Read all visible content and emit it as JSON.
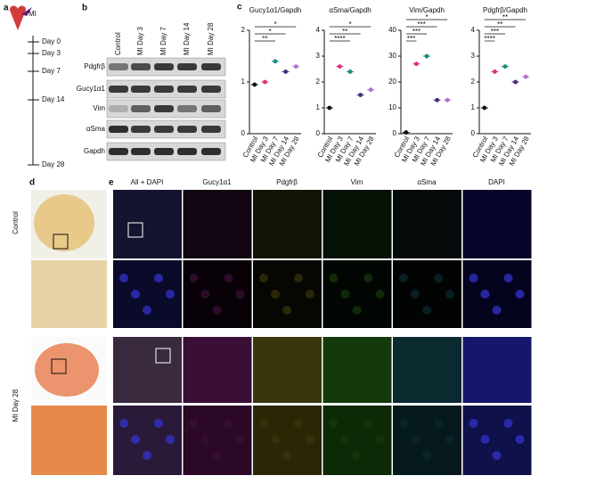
{
  "panel_labels": [
    "a",
    "b",
    "c",
    "d",
    "e"
  ],
  "timeline": {
    "label": "MI",
    "days": [
      "Day 0",
      "Day 3",
      "Day 7",
      "Day 14",
      "Day 28"
    ]
  },
  "blot": {
    "lanes": [
      "Control",
      "MI Day 3",
      "MI Day 7",
      "MI Day 14",
      "MI Day 28"
    ],
    "proteins": [
      "Pdgfrβ",
      "Gucy1α1",
      "Vim",
      "αSma",
      "Gapdh"
    ]
  },
  "chart_data": [
    {
      "type": "dot",
      "title": "Gucy1α1/Gapdh",
      "categories": [
        "Control",
        "MI Day 3",
        "MI Day 7",
        "MI Day 14",
        "MI Day 28"
      ],
      "values": [
        0.95,
        1.0,
        1.4,
        1.2,
        1.3
      ],
      "colors": [
        "#111111",
        "#e0307a",
        "#1a8a80",
        "#4a2a7a",
        "#b070d0"
      ],
      "ylim": [
        0,
        2
      ],
      "yticks": [
        0,
        1,
        2
      ],
      "significance": [
        "**",
        "*",
        "*"
      ]
    },
    {
      "type": "dot",
      "title": "αSma/Gapdh",
      "categories": [
        "Control",
        "MI Day 3",
        "MI Day 7",
        "MI Day 14",
        "MI Day 28"
      ],
      "values": [
        1.0,
        2.6,
        2.4,
        1.5,
        1.7
      ],
      "colors": [
        "#111111",
        "#e0307a",
        "#1a8a80",
        "#4a2a7a",
        "#b070d0"
      ],
      "ylim": [
        0,
        4
      ],
      "yticks": [
        0,
        1,
        2,
        3,
        4
      ],
      "significance": [
        "****",
        "**",
        "*"
      ]
    },
    {
      "type": "dot",
      "title": "Vim/Gapdh",
      "categories": [
        "Control",
        "MI Day 3",
        "MI Day 7",
        "MI Day 14",
        "MI Day 28"
      ],
      "values": [
        0.5,
        27,
        30,
        13,
        13
      ],
      "colors": [
        "#111111",
        "#e0307a",
        "#1a8a80",
        "#4a2a7a",
        "#b070d0"
      ],
      "ylim": [
        0,
        40
      ],
      "yticks": [
        0,
        10,
        20,
        30,
        40
      ],
      "significance": [
        "***",
        "***",
        "***",
        "*"
      ]
    },
    {
      "type": "dot",
      "title": "Pdgfrβ/Gapdh",
      "categories": [
        "Control",
        "MI Day 3",
        "MI Day 7",
        "MI Day 14",
        "MI Day 28"
      ],
      "values": [
        1.0,
        2.4,
        2.6,
        2.0,
        2.2
      ],
      "colors": [
        "#111111",
        "#e0307a",
        "#1a8a80",
        "#4a2a7a",
        "#b070d0"
      ],
      "ylim": [
        0,
        4
      ],
      "yticks": [
        0,
        1,
        2,
        3,
        4
      ],
      "significance": [
        "****",
        "***",
        "**",
        "**"
      ]
    }
  ],
  "histology": {
    "rows": [
      "Control",
      "MI Day 28"
    ],
    "columns": [
      "All + DAPI",
      "Gucy1α1",
      "Pdgfrβ",
      "Vim",
      "αSma",
      "DAPI"
    ],
    "column_colors": [
      "#333333",
      "#d020c0",
      "#c8b800",
      "#30b030",
      "#20b0c0",
      "#3030d0"
    ]
  }
}
